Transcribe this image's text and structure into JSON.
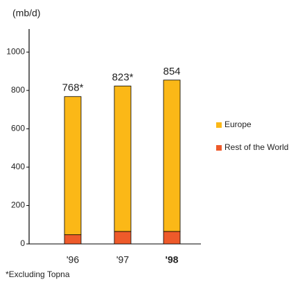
{
  "chart_data": {
    "type": "stacked-bar",
    "y_axis_label": "(mb/d)",
    "categories": [
      "'96",
      "'97",
      "'98"
    ],
    "category_bold": [
      false,
      false,
      true
    ],
    "series": [
      {
        "name": "Rest of the World",
        "color": "#ee5a2a",
        "values": [
          48,
          65,
          65
        ]
      },
      {
        "name": "Europe",
        "color": "#fbb817",
        "values": [
          720,
          758,
          789
        ]
      }
    ],
    "totals": [
      768,
      823,
      854
    ],
    "total_labels": [
      "768*",
      "823*",
      "854"
    ],
    "ylim": [
      0,
      1120
    ],
    "yticks": [
      0,
      200,
      400,
      600,
      800,
      1000
    ],
    "legend_order": [
      1,
      0
    ],
    "footnote": "*Excluding Topna"
  }
}
